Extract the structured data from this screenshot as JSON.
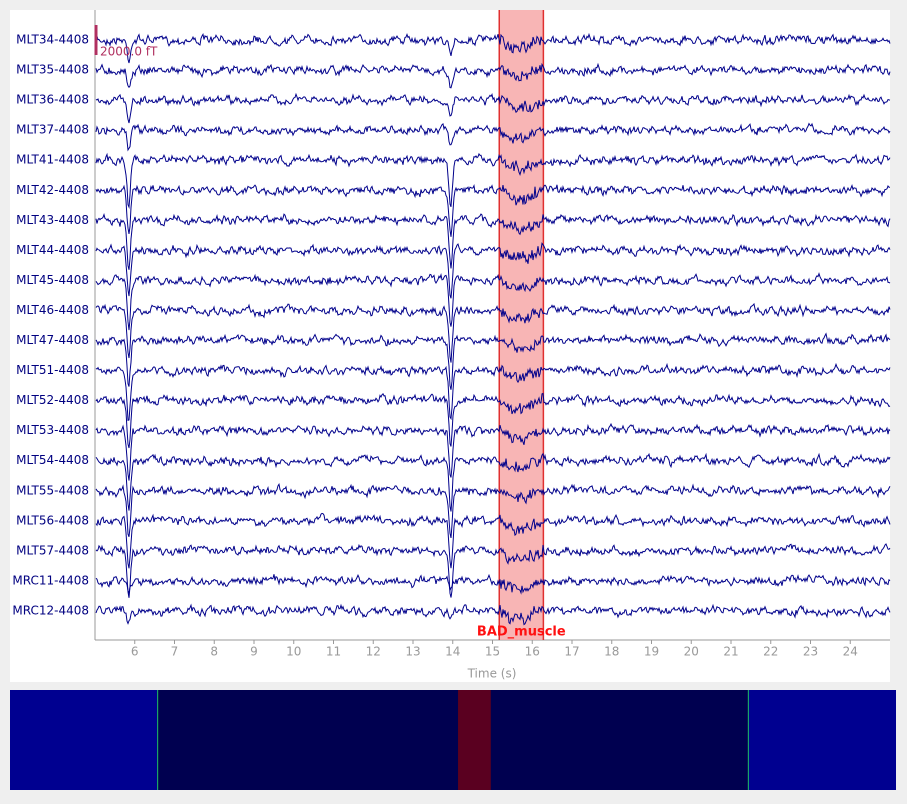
{
  "channels": [
    "MLT34-4408",
    "MLT35-4408",
    "MLT36-4408",
    "MLT37-4408",
    "MLT41-4408",
    "MLT42-4408",
    "MLT43-4408",
    "MLT44-4408",
    "MLT45-4408",
    "MLT46-4408",
    "MLT47-4408",
    "MLT51-4408",
    "MLT52-4408",
    "MLT53-4408",
    "MLT54-4408",
    "MLT55-4408",
    "MLT56-4408",
    "MLT57-4408",
    "MRC11-4408",
    "MRC12-4408"
  ],
  "annotation": {
    "label": "BAD_muscle",
    "onset": 15.17,
    "offset": 16.28
  },
  "scale_bar": {
    "label": "2000.0 fT"
  },
  "time_axis": {
    "label": "Time (s)",
    "lim": [
      5,
      25
    ],
    "ticks": [
      6,
      7,
      8,
      9,
      10,
      11,
      12,
      13,
      14,
      15,
      16,
      17,
      18,
      19,
      20,
      21,
      22,
      23,
      24
    ]
  },
  "overview": {
    "lim": [
      0,
      30
    ]
  },
  "spike_times": [
    5.85,
    13.95
  ]
}
